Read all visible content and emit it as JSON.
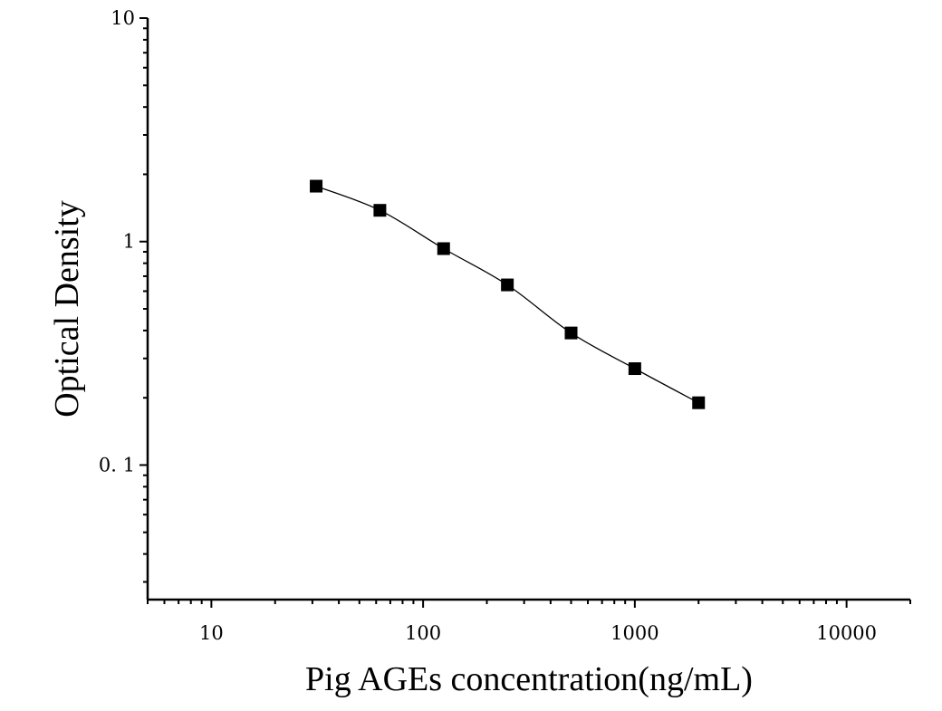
{
  "chart_data": {
    "type": "scatter",
    "title": "",
    "xlabel": "Pig AGEs concentration(ng/mL)",
    "ylabel": "Optical Density",
    "x_scale": "log",
    "y_scale": "log",
    "xlim": [
      5,
      20000
    ],
    "ylim": [
      0.025,
      10
    ],
    "x_ticks": [
      {
        "value": 10,
        "label": "10"
      },
      {
        "value": 100,
        "label": "100"
      },
      {
        "value": 1000,
        "label": "1000"
      },
      {
        "value": 10000,
        "label": "10000"
      }
    ],
    "y_ticks": [
      {
        "value": 0.1,
        "label": "0. 1"
      },
      {
        "value": 1,
        "label": "1"
      },
      {
        "value": 10,
        "label": "10"
      }
    ],
    "grid": false,
    "legend": "none",
    "fit_curve": true,
    "marker": "square",
    "color": "#000000",
    "series": [
      {
        "x": [
          31.25,
          62.5,
          125,
          250,
          500,
          1000,
          2000
        ],
        "y": [
          1.77,
          1.38,
          0.93,
          0.64,
          0.39,
          0.27,
          0.19
        ]
      }
    ]
  }
}
